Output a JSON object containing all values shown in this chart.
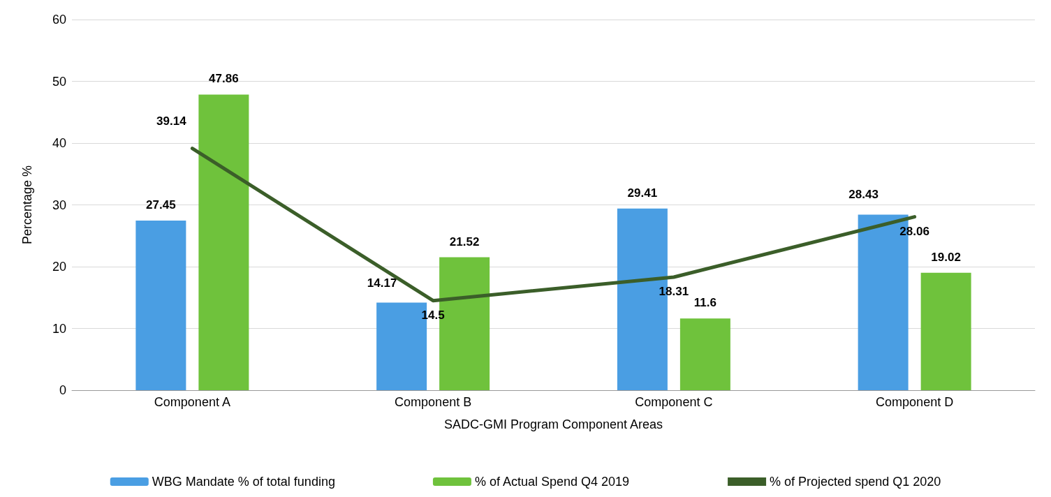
{
  "chart_data": {
    "type": "bar",
    "xlabel": "SADC-GMI Program Component Areas",
    "ylabel": "Percentage %",
    "categories": [
      "Component A",
      "Component B",
      "Component C",
      "Component D"
    ],
    "series": [
      {
        "name": "WBG Mandate % of total funding",
        "color": "#4a9ee3",
        "values": [
          27.45,
          14.17,
          29.41,
          28.43
        ]
      },
      {
        "name": "% of Actual Spend Q4 2019",
        "color": "#6fc23c",
        "values": [
          47.86,
          21.52,
          11.6,
          19.02
        ]
      },
      {
        "name": "% of Projected spend Q1 2020",
        "type": "line",
        "color": "#3b5e29",
        "values": [
          39.14,
          14.5,
          18.31,
          28.06
        ]
      }
    ],
    "ylim": [
      0,
      60
    ],
    "yticks": [
      0,
      10,
      20,
      30,
      40,
      50,
      60
    ],
    "grid": "y",
    "legend": "bottom",
    "data_labels": true,
    "marker": "none",
    "line_style": "solid"
  }
}
